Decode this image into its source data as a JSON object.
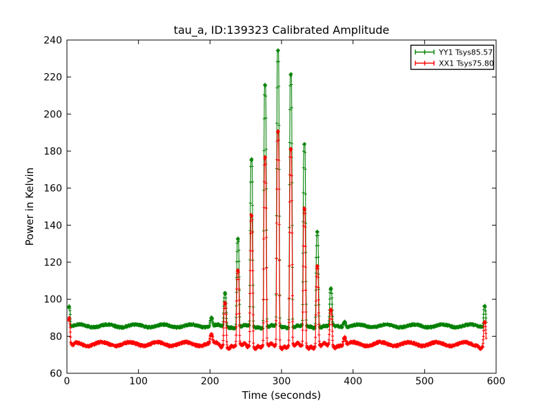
{
  "figure": {
    "background": "#ffffff",
    "frame_color": "#000000"
  },
  "chart_data": {
    "type": "line",
    "title": "tau_a, ID:139323 Calibrated Amplitude",
    "xlabel": "Time (seconds)",
    "ylabel": "Power in Kelvin",
    "xlim": [
      0,
      600
    ],
    "ylim": [
      60,
      240
    ],
    "xticks": [
      0,
      100,
      200,
      300,
      400,
      500,
      600
    ],
    "yticks": [
      60,
      80,
      100,
      120,
      140,
      160,
      180,
      200,
      220,
      240
    ],
    "grid": false,
    "legend_position": "upper-right",
    "time_range": [
      2,
      586
    ],
    "sample_step": 0.25,
    "series": [
      {
        "name": "YY1 Tsys85.57",
        "pol": "YY1",
        "tsys": 85.57,
        "color": "#008000",
        "marker": "plus",
        "baseline_mean": 85.6,
        "wiggle_amplitude": 0.75,
        "wiggle_period": 39,
        "wiggle_phase": 8,
        "noise_amplitude": 0.55,
        "dip_depth": 0.6,
        "peaks": [
          {
            "t": 3,
            "value": 96.5,
            "width": 2.6
          },
          {
            "t": 202,
            "value": 90.0,
            "width": 3.2
          },
          {
            "t": 221,
            "value": 103.0,
            "width": 3.0
          },
          {
            "t": 239,
            "value": 133.0,
            "width": 3.0
          },
          {
            "t": 258,
            "value": 175.0,
            "width": 3.0
          },
          {
            "t": 277,
            "value": 216.0,
            "width": 3.0
          },
          {
            "t": 295,
            "value": 234.0,
            "width": 3.0
          },
          {
            "t": 313,
            "value": 222.0,
            "width": 3.0
          },
          {
            "t": 332,
            "value": 183.0,
            "width": 3.0
          },
          {
            "t": 350,
            "value": 137.0,
            "width": 3.0
          },
          {
            "t": 369,
            "value": 105.0,
            "width": 3.0
          },
          {
            "t": 388,
            "value": 88.5,
            "width": 3.2
          },
          {
            "t": 584,
            "value": 97.0,
            "width": 2.6
          }
        ]
      },
      {
        "name": "XX1 Tsys75.80",
        "pol": "XX1",
        "tsys": 75.8,
        "color": "#ff0000",
        "marker": "plus",
        "baseline_mean": 75.8,
        "wiggle_amplitude": 1.0,
        "wiggle_period": 39,
        "wiggle_phase": 0,
        "noise_amplitude": 0.65,
        "dip_depth": 1.6,
        "peaks": [
          {
            "t": 3,
            "value": 89.0,
            "width": 2.6
          },
          {
            "t": 202,
            "value": 80.0,
            "width": 3.2
          },
          {
            "t": 221,
            "value": 99.0,
            "width": 3.0
          },
          {
            "t": 239,
            "value": 115.0,
            "width": 3.0
          },
          {
            "t": 258,
            "value": 146.0,
            "width": 3.0
          },
          {
            "t": 277,
            "value": 176.0,
            "width": 3.0
          },
          {
            "t": 295,
            "value": 191.0,
            "width": 3.0
          },
          {
            "t": 313,
            "value": 181.0,
            "width": 3.0
          },
          {
            "t": 332,
            "value": 149.0,
            "width": 3.0
          },
          {
            "t": 350,
            "value": 118.0,
            "width": 3.0
          },
          {
            "t": 369,
            "value": 94.0,
            "width": 3.0
          },
          {
            "t": 388,
            "value": 79.5,
            "width": 3.2
          },
          {
            "t": 584,
            "value": 88.0,
            "width": 2.6
          }
        ]
      }
    ]
  }
}
